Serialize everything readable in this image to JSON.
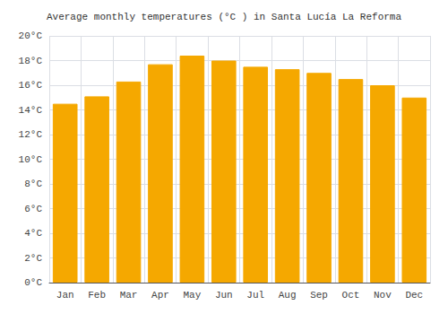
{
  "chart_data": {
    "type": "bar",
    "title": "Average monthly temperatures (°C ) in Santa Lucía La Reforma",
    "categories": [
      "Jan",
      "Feb",
      "Mar",
      "Apr",
      "May",
      "Jun",
      "Jul",
      "Aug",
      "Sep",
      "Oct",
      "Nov",
      "Dec"
    ],
    "values": [
      14.5,
      15.1,
      16.3,
      17.7,
      18.4,
      18.0,
      17.5,
      17.3,
      17.0,
      16.5,
      16.0,
      15.0
    ],
    "color": "#F5A800",
    "ylim": [
      0,
      20
    ],
    "yticks": [
      {
        "value": 0,
        "label": "0°C"
      },
      {
        "value": 2,
        "label": "2°C"
      },
      {
        "value": 4,
        "label": "4°C"
      },
      {
        "value": 6,
        "label": "6°C"
      },
      {
        "value": 8,
        "label": "8°C"
      },
      {
        "value": 10,
        "label": "10°C"
      },
      {
        "value": 12,
        "label": "12°C"
      },
      {
        "value": 14,
        "label": "14°C"
      },
      {
        "value": 16,
        "label": "16°C"
      },
      {
        "value": 18,
        "label": "18°C"
      },
      {
        "value": 20,
        "label": "20°C"
      }
    ],
    "grid": true
  }
}
